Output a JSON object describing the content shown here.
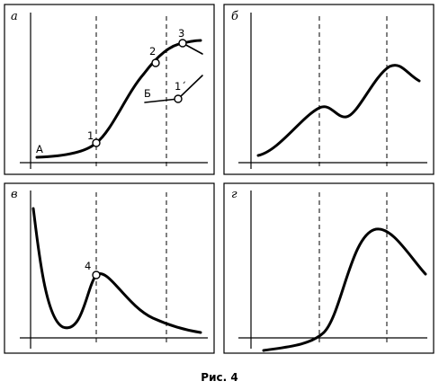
{
  "panels": [
    {
      "letter": "а"
    },
    {
      "letter": "б"
    },
    {
      "letter": "в"
    },
    {
      "letter": "г"
    }
  ],
  "labels": {
    "start_a": "А",
    "curve_b": "Б",
    "point_1": "1",
    "point_2": "2",
    "point_3": "3",
    "point_1_prime": "1´",
    "point_4": "4"
  },
  "caption": "Рис. 4"
}
